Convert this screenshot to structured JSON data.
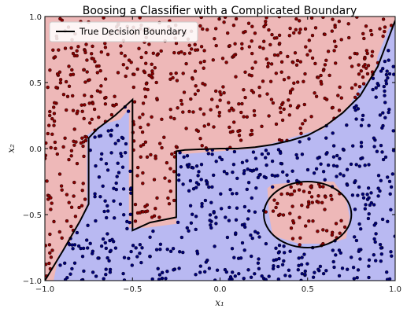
{
  "chart_data": {
    "type": "scatter",
    "title": "Boosing a Classifier with a Complicated Boundary",
    "xlabel": "x₁",
    "ylabel": "x₂",
    "xlim": [
      -1.0,
      1.0
    ],
    "ylim": [
      -1.0,
      1.0
    ],
    "x_ticks": [
      "−1.0",
      "−0.5",
      "0.0",
      "0.5",
      "1.0"
    ],
    "y_ticks": [
      "−1.0",
      "−0.5",
      "0.0",
      "0.5",
      "1.0"
    ],
    "grid": false,
    "legend": {
      "placement": "top-left",
      "entries": [
        "True Decision Boundary"
      ]
    },
    "colors": {
      "region_class_1": "#eeb8b8",
      "region_class_2": "#b9b9f2",
      "points_class_1": "#8b0000",
      "points_class_2": "#00007a",
      "boundary": "#000000"
    },
    "true_boundary": {
      "outer": [
        [
          -1.0,
          -1.0
        ],
        [
          -0.9,
          -0.78
        ],
        [
          -0.8,
          -0.55
        ],
        [
          -0.75,
          -0.42
        ],
        [
          -0.75,
          0.08
        ],
        [
          -0.7,
          0.15
        ],
        [
          -0.6,
          0.25
        ],
        [
          -0.5,
          0.37
        ],
        [
          -0.5,
          -0.62
        ],
        [
          -0.4,
          -0.56
        ],
        [
          -0.25,
          -0.52
        ],
        [
          -0.25,
          -0.02
        ],
        [
          -0.2,
          -0.01
        ],
        [
          0.0,
          0.0
        ],
        [
          0.1,
          0.0
        ],
        [
          0.2,
          0.01
        ],
        [
          0.3,
          0.03
        ],
        [
          0.4,
          0.06
        ],
        [
          0.5,
          0.1
        ],
        [
          0.6,
          0.17
        ],
        [
          0.7,
          0.27
        ],
        [
          0.8,
          0.4
        ],
        [
          0.9,
          0.62
        ],
        [
          1.0,
          0.97
        ]
      ],
      "circle": {
        "cx": 0.5,
        "cy": -0.5,
        "r": 0.25
      }
    },
    "predicted_regions_class_2": [
      [
        [
          -0.95,
          -1.0
        ],
        [
          -0.92,
          -0.8
        ],
        [
          -0.86,
          -0.72
        ],
        [
          -0.8,
          -0.55
        ],
        [
          -0.76,
          -0.42
        ],
        [
          -0.76,
          0.1
        ],
        [
          -0.68,
          0.18
        ],
        [
          -0.57,
          0.22
        ],
        [
          -0.52,
          0.3
        ],
        [
          -0.52,
          -0.6
        ],
        [
          -0.42,
          -0.6
        ],
        [
          -0.25,
          -0.57
        ],
        [
          -0.25,
          -0.03
        ],
        [
          -0.2,
          -0.04
        ],
        [
          0.0,
          -0.02
        ],
        [
          0.2,
          0.0
        ],
        [
          0.4,
          0.08
        ],
        [
          0.5,
          0.12
        ],
        [
          0.58,
          0.14
        ],
        [
          0.66,
          0.22
        ],
        [
          0.73,
          0.3
        ],
        [
          0.8,
          0.47
        ],
        [
          0.88,
          0.55
        ],
        [
          0.9,
          0.7
        ],
        [
          0.96,
          0.9
        ],
        [
          1.0,
          0.97
        ],
        [
          1.0,
          -1.0
        ]
      ]
    ],
    "predicted_regions_class_1_inside": [
      [
        [
          0.27,
          -0.3
        ],
        [
          0.3,
          -0.27
        ],
        [
          0.5,
          -0.25
        ],
        [
          0.65,
          -0.25
        ],
        [
          0.72,
          -0.38
        ],
        [
          0.74,
          -0.52
        ],
        [
          0.72,
          -0.68
        ],
        [
          0.62,
          -0.72
        ],
        [
          0.45,
          -0.72
        ],
        [
          0.3,
          -0.66
        ],
        [
          0.28,
          -0.5
        ]
      ]
    ],
    "series": [
      {
        "class": 1,
        "n_points": 620
      },
      {
        "class": 2,
        "n_points": 560
      }
    ]
  }
}
